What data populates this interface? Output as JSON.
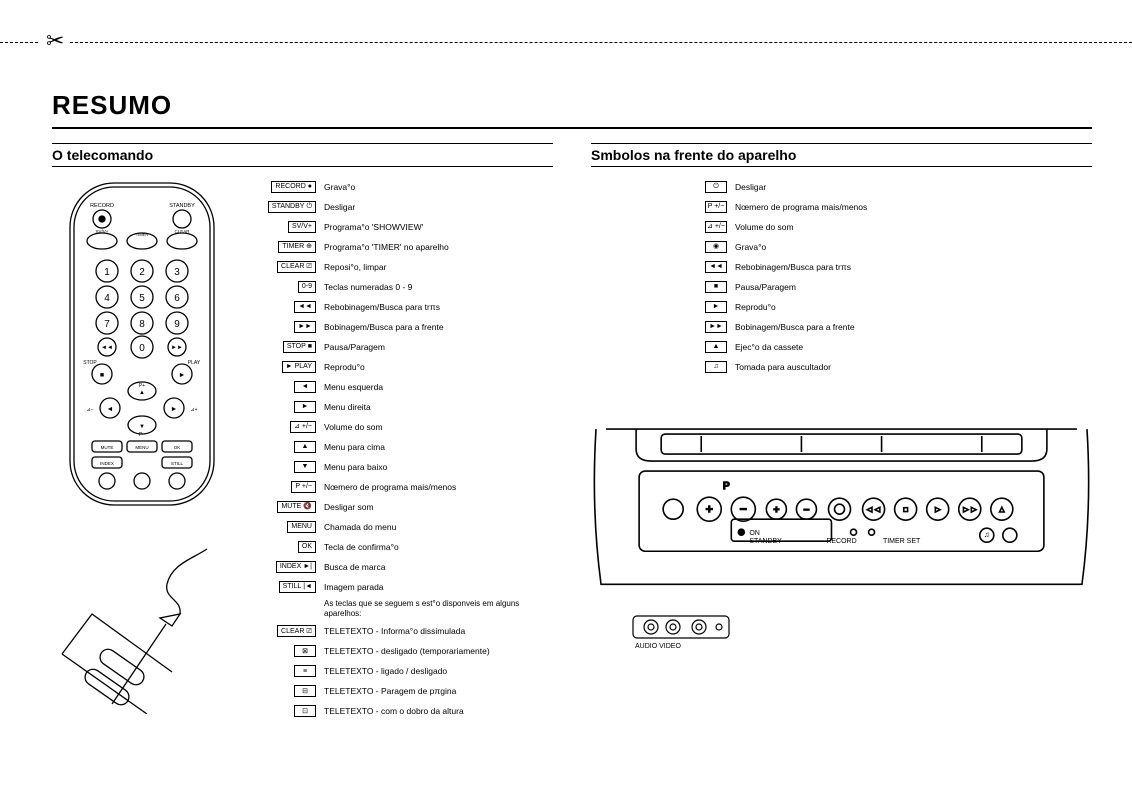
{
  "page": {
    "title": "RESUMO",
    "cut_symbol": "✂"
  },
  "left": {
    "header": "O telecomando",
    "legend_note": "As teclas que se seguem s est°o disponveis em alguns aparelhos:",
    "items": [
      {
        "label": "RECORD",
        "glyph": "●",
        "desc": "Grava°o"
      },
      {
        "label": "STANDBY",
        "glyph": "⏻",
        "desc": "Desligar"
      },
      {
        "label": "SV/V+",
        "glyph": "",
        "desc": "Programa°o 'SHOWVIEW'"
      },
      {
        "label": "TIMER",
        "glyph": "⊕",
        "desc": "Programa°o 'TIMER' no aparelho"
      },
      {
        "label": "CLEAR",
        "glyph": "⎚",
        "desc": "Reposi°o, limpar"
      },
      {
        "label": "0-9",
        "glyph": "",
        "desc": "Teclas numeradas 0 - 9"
      },
      {
        "label": "",
        "glyph": "◄◄",
        "desc": "Rebobinagem/Busca para trπs"
      },
      {
        "label": "",
        "glyph": "►►",
        "desc": "Bobinagem/Busca para a frente"
      },
      {
        "label": "STOP",
        "glyph": "■",
        "desc": "Pausa/Paragem"
      },
      {
        "label": "► PLAY",
        "glyph": "",
        "desc": "Reprodu°o"
      },
      {
        "label": "",
        "glyph": "◄",
        "desc": "Menu esquerda"
      },
      {
        "label": "",
        "glyph": "►",
        "desc": "Menu direita"
      },
      {
        "label": "⊿ +/−",
        "glyph": "",
        "desc": "Volume do som"
      },
      {
        "label": "",
        "glyph": "▲",
        "desc": "Menu para cima"
      },
      {
        "label": "",
        "glyph": "▼",
        "desc": "Menu para baixo"
      },
      {
        "label": "P +/−",
        "glyph": "",
        "desc": "Nœmero de programa mais/menos"
      },
      {
        "label": "MUTE",
        "glyph": "🔇",
        "desc": "Desligar som"
      },
      {
        "label": "MENU",
        "glyph": "",
        "desc": "Chamada do menu"
      },
      {
        "label": "OK",
        "glyph": "",
        "desc": "Tecla de confirma°o"
      },
      {
        "label": "INDEX",
        "glyph": "►|",
        "desc": "Busca de marca"
      },
      {
        "label": "STILL",
        "glyph": "|◄",
        "desc": "Imagem parada"
      }
    ],
    "teletext_items": [
      {
        "label": "CLEAR",
        "glyph": "⎚",
        "desc": "TELETEXTO - Informa°o dissimulada"
      },
      {
        "label": "",
        "glyph": "⊠",
        "desc": "TELETEXTO - desligado (temporariamente)"
      },
      {
        "label": "",
        "glyph": "≡",
        "desc": "TELETEXTO - ligado / desligado"
      },
      {
        "label": "",
        "glyph": "⊟",
        "desc": "TELETEXTO - Paragem de pπgina"
      },
      {
        "label": "",
        "glyph": "⊡",
        "desc": "TELETEXTO - com o dobro da altura"
      }
    ]
  },
  "right": {
    "header": "Smbolos na frente do aparelho",
    "items": [
      {
        "glyph": "⏻",
        "desc": "Desligar"
      },
      {
        "glyph": "P +/−",
        "desc": "Nœmero de programa mais/menos"
      },
      {
        "glyph": "⊿ +/−",
        "desc": "Volume do som"
      },
      {
        "glyph": "◉",
        "desc": "Grava°o"
      },
      {
        "glyph": "◄◄",
        "desc": "Rebobinagem/Busca para trπs"
      },
      {
        "glyph": "■",
        "desc": "Pausa/Paragem"
      },
      {
        "glyph": "►",
        "desc": "Reprodu°o"
      },
      {
        "glyph": "►►",
        "desc": "Bobinagem/Busca para a frente"
      },
      {
        "glyph": "▲",
        "desc": "Ejec°o da cassete"
      },
      {
        "glyph": "♫",
        "desc": "Tomada para auscultador"
      }
    ],
    "device_labels": {
      "p": "P",
      "on": "ON",
      "standby": "STANDBY",
      "record": "RECORD",
      "timer": "TIMER SET"
    },
    "av_label": "AUDIO VIDEO"
  },
  "remote": {
    "labels": {
      "record": "RECORD",
      "standby": "STANDBY",
      "svv": "SV/V+",
      "timer": "TIMER",
      "clear": "CLEAR",
      "stop": "STOP",
      "play": "PLAY",
      "mute": "MUTE",
      "menu": "MENU",
      "ok": "OK",
      "index": "INDEX",
      "still": "STILL",
      "pplus": "P+",
      "pminus": "P−",
      "volminus": "⊿−",
      "volplus": "⊿+"
    }
  },
  "style": {
    "bg": "#ffffff",
    "fg": "#000000",
    "title_fontsize": 26,
    "section_fontsize": 14,
    "legend_fontsize": 8.5,
    "box_fontsize": 7,
    "stroke": "#000000",
    "stroke_width": 1.3
  }
}
